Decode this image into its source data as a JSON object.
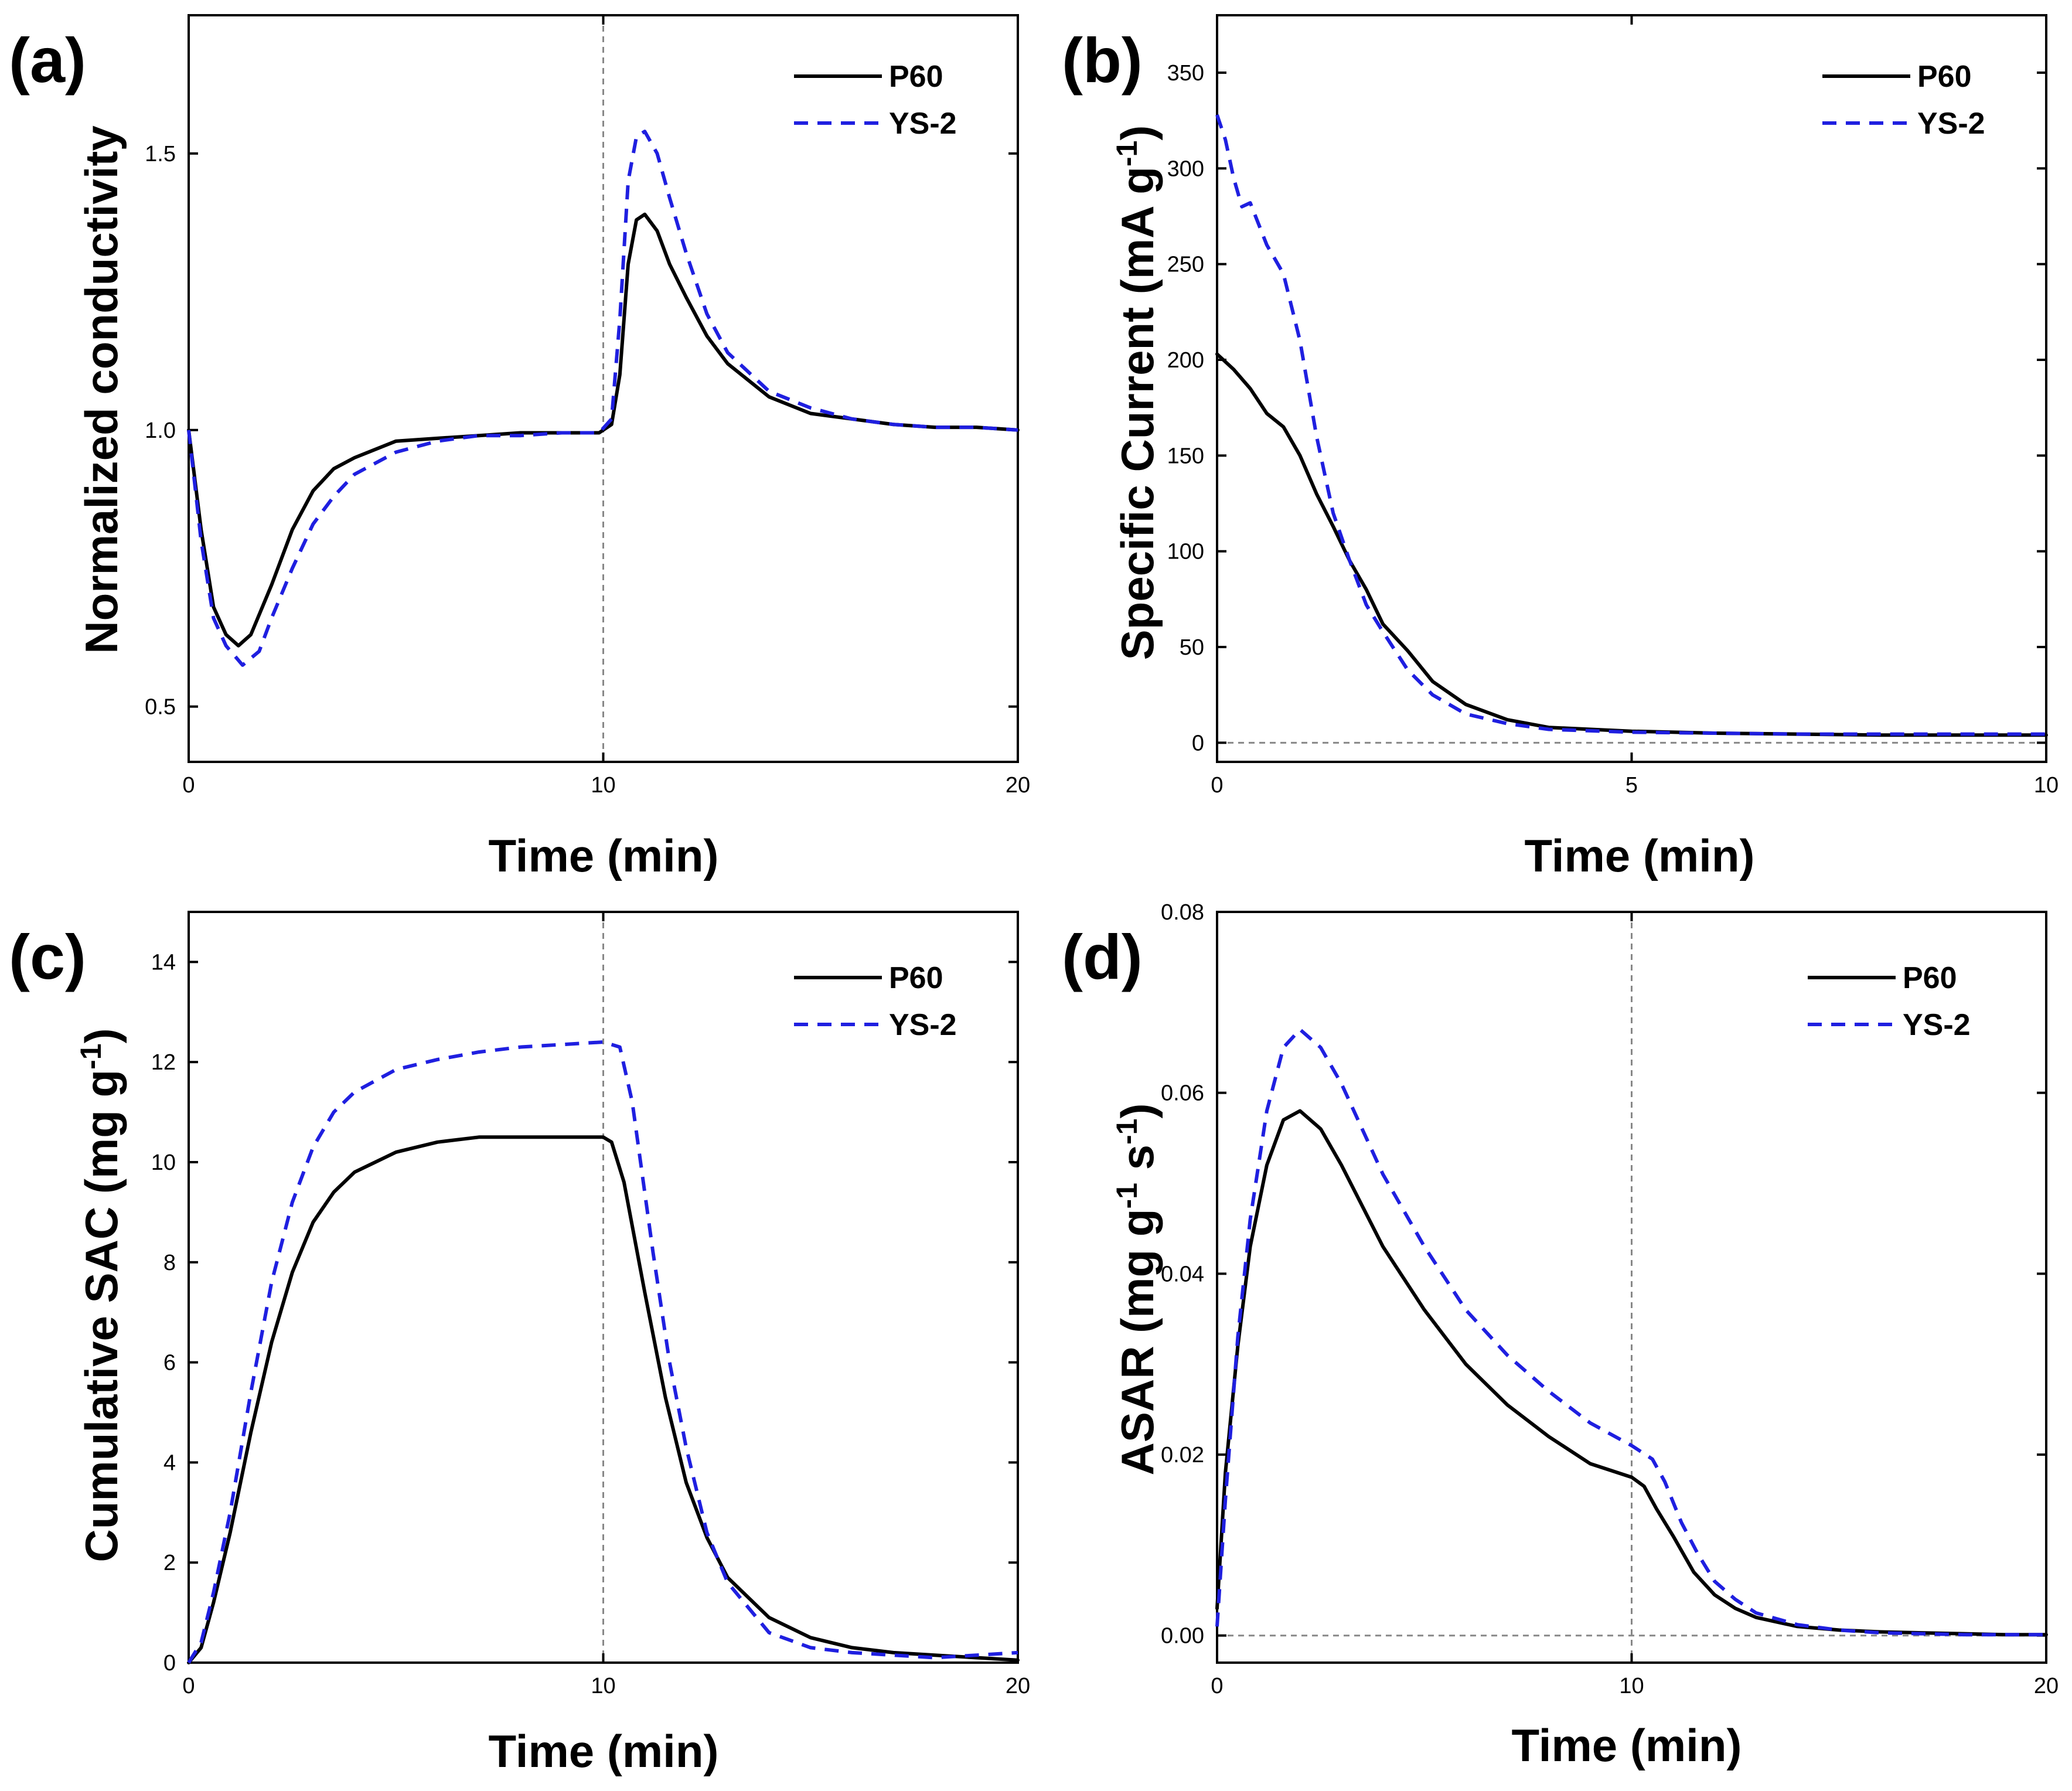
{
  "chart_data": [
    {
      "panel": "(a)",
      "type": "line",
      "xlabel": "Time (min)",
      "ylabel": "Normalized conductivity",
      "xlim": [
        0,
        20
      ],
      "ylim": [
        0.4,
        1.75
      ],
      "xticks": [
        0,
        10,
        20
      ],
      "xtick_labels": [
        "0",
        "10",
        "20"
      ],
      "yticks": [
        0.5,
        1.0,
        1.5
      ],
      "ytick_labels": [
        "0.5",
        "1.0",
        "1.5"
      ],
      "vline": 10,
      "legend": [
        "P60",
        "YS-2"
      ],
      "series": [
        {
          "name": "P60",
          "style": "solid",
          "color": "#000000",
          "x": [
            0,
            0.3,
            0.6,
            0.9,
            1.2,
            1.5,
            2,
            2.5,
            3,
            3.5,
            4,
            5,
            6,
            7,
            8,
            9,
            9.9,
            10.2,
            10.4,
            10.6,
            10.8,
            11,
            11.3,
            11.6,
            12,
            12.5,
            13,
            14,
            15,
            16,
            17,
            18,
            19,
            20
          ],
          "values": [
            1.0,
            0.82,
            0.68,
            0.63,
            0.61,
            0.63,
            0.72,
            0.82,
            0.89,
            0.93,
            0.95,
            0.98,
            0.985,
            0.99,
            0.995,
            0.995,
            0.995,
            1.01,
            1.1,
            1.3,
            1.38,
            1.39,
            1.36,
            1.3,
            1.24,
            1.17,
            1.12,
            1.06,
            1.03,
            1.02,
            1.01,
            1.005,
            1.005,
            1.0
          ]
        },
        {
          "name": "YS-2",
          "style": "dashed",
          "color": "#1f1fe0",
          "x": [
            0,
            0.3,
            0.6,
            0.9,
            1.3,
            1.7,
            2,
            2.5,
            3,
            3.5,
            4,
            5,
            6,
            7,
            8,
            9,
            9.9,
            10.2,
            10.4,
            10.6,
            10.8,
            11,
            11.3,
            11.6,
            12,
            12.5,
            13,
            14,
            15,
            16,
            17,
            18,
            19,
            20
          ],
          "values": [
            1.0,
            0.8,
            0.66,
            0.61,
            0.575,
            0.6,
            0.66,
            0.75,
            0.83,
            0.88,
            0.92,
            0.96,
            0.98,
            0.99,
            0.99,
            0.995,
            0.995,
            1.02,
            1.2,
            1.45,
            1.53,
            1.54,
            1.5,
            1.42,
            1.32,
            1.21,
            1.14,
            1.07,
            1.04,
            1.02,
            1.01,
            1.005,
            1.005,
            1.0
          ]
        }
      ]
    },
    {
      "panel": "(b)",
      "type": "line",
      "xlabel": "Time (min)",
      "ylabel_parts": [
        "Specific Current (mA g",
        "-1",
        ")"
      ],
      "xlim": [
        0,
        10
      ],
      "ylim": [
        -10,
        380
      ],
      "xticks": [
        0,
        5,
        10
      ],
      "xtick_labels": [
        "0",
        "5",
        "10"
      ],
      "yticks": [
        0,
        50,
        100,
        150,
        200,
        250,
        300,
        350
      ],
      "ytick_labels": [
        "0",
        "50",
        "100",
        "150",
        "200",
        "250",
        "300",
        "350"
      ],
      "hline": 0,
      "legend": [
        "P60",
        "YS-2"
      ],
      "series": [
        {
          "name": "P60",
          "style": "solid",
          "color": "#000000",
          "x": [
            0,
            0.2,
            0.4,
            0.6,
            0.8,
            1.0,
            1.2,
            1.4,
            1.6,
            1.8,
            2.0,
            2.3,
            2.6,
            3.0,
            3.5,
            4,
            5,
            6,
            7,
            8,
            9,
            10
          ],
          "values": [
            203,
            195,
            185,
            172,
            165,
            150,
            130,
            113,
            95,
            80,
            62,
            48,
            32,
            20,
            12,
            8,
            6,
            5,
            4.5,
            4,
            4,
            4
          ]
        },
        {
          "name": "YS-2",
          "style": "dashed",
          "color": "#1f1fe0",
          "x": [
            0,
            0.1,
            0.2,
            0.3,
            0.4,
            0.6,
            0.8,
            1.0,
            1.2,
            1.4,
            1.6,
            1.8,
            2.0,
            2.3,
            2.6,
            3.0,
            3.5,
            4,
            5,
            6,
            7,
            8,
            9,
            10
          ],
          "values": [
            328,
            315,
            295,
            280,
            282,
            260,
            245,
            210,
            160,
            120,
            95,
            72,
            58,
            38,
            25,
            15,
            10,
            7,
            5.5,
            5,
            4.5,
            4.5,
            4.5,
            4.5
          ]
        }
      ]
    },
    {
      "panel": "(c)",
      "type": "line",
      "xlabel": "Time (min)",
      "ylabel_parts": [
        "Cumulative SAC (mg g",
        "-1",
        ")"
      ],
      "xlim": [
        0,
        20
      ],
      "ylim": [
        0,
        15
      ],
      "xticks": [
        0,
        10,
        20
      ],
      "xtick_labels": [
        "0",
        "10",
        "20"
      ],
      "yticks": [
        0,
        2,
        4,
        6,
        8,
        10,
        12,
        14
      ],
      "ytick_labels": [
        "0",
        "2",
        "4",
        "6",
        "8",
        "10",
        "12",
        "14"
      ],
      "vline": 10,
      "legend": [
        "P60",
        "YS-2"
      ],
      "series": [
        {
          "name": "P60",
          "style": "solid",
          "color": "#000000",
          "x": [
            0,
            0.3,
            0.6,
            1.0,
            1.5,
            2,
            2.5,
            3,
            3.5,
            4,
            5,
            6,
            7,
            8,
            9,
            10,
            10.2,
            10.5,
            11,
            11.5,
            12,
            12.5,
            13,
            14,
            15,
            16,
            17,
            18,
            19,
            20
          ],
          "values": [
            0,
            0.3,
            1.2,
            2.6,
            4.6,
            6.4,
            7.8,
            8.8,
            9.4,
            9.8,
            10.2,
            10.4,
            10.5,
            10.5,
            10.5,
            10.5,
            10.4,
            9.6,
            7.4,
            5.3,
            3.6,
            2.5,
            1.7,
            0.9,
            0.5,
            0.3,
            0.2,
            0.15,
            0.1,
            0.05
          ]
        },
        {
          "name": "YS-2",
          "style": "dashed",
          "color": "#1f1fe0",
          "x": [
            0,
            0.3,
            0.6,
            1.0,
            1.5,
            2,
            2.5,
            3,
            3.5,
            4,
            5,
            6,
            7,
            8,
            9,
            10,
            10.4,
            10.7,
            11.2,
            11.6,
            12,
            12.5,
            13,
            14,
            15,
            16,
            17,
            18,
            19,
            20
          ],
          "values": [
            0,
            0.4,
            1.4,
            3.0,
            5.4,
            7.6,
            9.2,
            10.3,
            11.0,
            11.4,
            11.85,
            12.05,
            12.2,
            12.3,
            12.35,
            12.4,
            12.3,
            11.2,
            8.2,
            6.0,
            4.3,
            2.6,
            1.6,
            0.6,
            0.3,
            0.2,
            0.15,
            0.1,
            0.15,
            0.2
          ]
        }
      ]
    },
    {
      "panel": "(d)",
      "type": "line",
      "xlabel": "Time (min)",
      "ylabel_parts": [
        "ASAR (mg g",
        "-1",
        " s",
        "-1",
        ")"
      ],
      "xlim": [
        0,
        20
      ],
      "ylim": [
        -0.003,
        0.08
      ],
      "xticks": [
        0,
        10,
        20
      ],
      "xtick_labels": [
        "0",
        "10",
        "20"
      ],
      "yticks": [
        0.0,
        0.02,
        0.04,
        0.06,
        0.08
      ],
      "ytick_labels": [
        "0.00",
        "0.02",
        "0.04",
        "0.06",
        "0.08"
      ],
      "vline": 10,
      "hline": 0,
      "legend": [
        "P60",
        "YS-2"
      ],
      "series": [
        {
          "name": "P60",
          "style": "solid",
          "color": "#000000",
          "x": [
            0,
            0.2,
            0.5,
            0.8,
            1.2,
            1.6,
            2.0,
            2.5,
            3,
            4,
            5,
            6,
            7,
            8,
            9,
            10,
            10.3,
            10.6,
            11,
            11.5,
            12,
            12.5,
            13,
            14,
            15,
            16,
            17,
            18,
            19,
            20
          ],
          "values": [
            0.003,
            0.018,
            0.032,
            0.043,
            0.052,
            0.057,
            0.058,
            0.056,
            0.052,
            0.043,
            0.036,
            0.03,
            0.0255,
            0.022,
            0.019,
            0.0175,
            0.0165,
            0.014,
            0.011,
            0.007,
            0.0045,
            0.003,
            0.002,
            0.001,
            0.0006,
            0.0004,
            0.0003,
            0.0002,
            0.0001,
            0.0001
          ]
        },
        {
          "name": "YS-2",
          "style": "dashed",
          "color": "#1f1fe0",
          "x": [
            0,
            0.2,
            0.5,
            0.8,
            1.2,
            1.6,
            2.0,
            2.5,
            3,
            4,
            5,
            6,
            7,
            8,
            9,
            10,
            10.5,
            10.8,
            11.2,
            11.6,
            12,
            12.5,
            13,
            14,
            15,
            16,
            17,
            18,
            19,
            20
          ],
          "values": [
            0.001,
            0.015,
            0.033,
            0.046,
            0.058,
            0.065,
            0.067,
            0.065,
            0.061,
            0.051,
            0.043,
            0.036,
            0.031,
            0.027,
            0.0235,
            0.021,
            0.0195,
            0.017,
            0.0125,
            0.009,
            0.006,
            0.004,
            0.0025,
            0.0012,
            0.0006,
            0.0003,
            0.0002,
            0.0001,
            0.0001,
            0.0001
          ]
        }
      ]
    }
  ]
}
